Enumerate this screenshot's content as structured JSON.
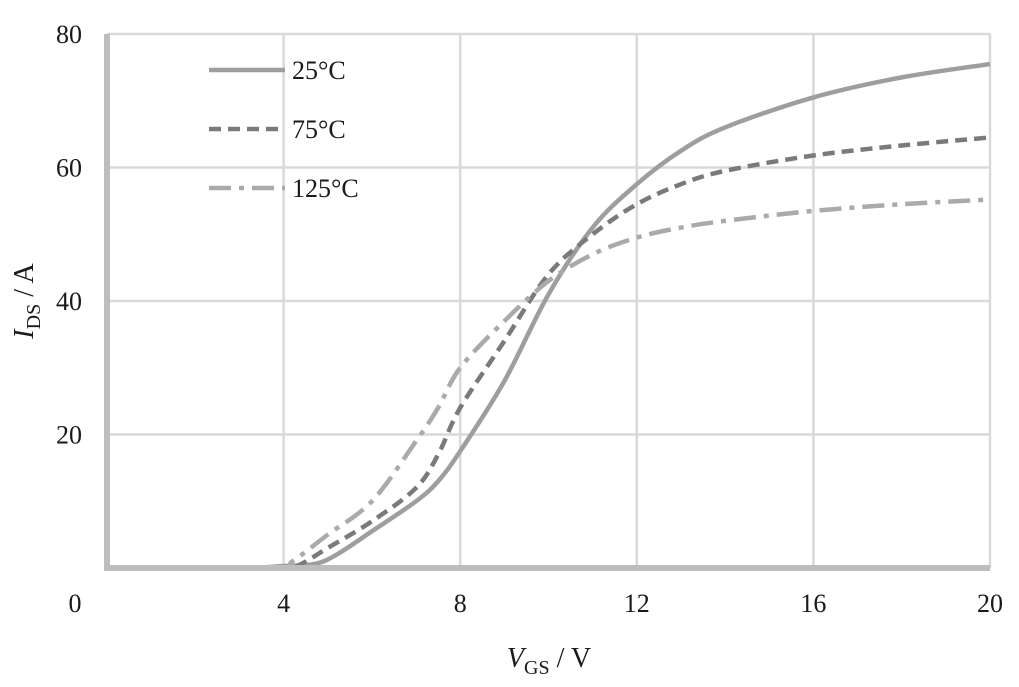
{
  "chart_data": {
    "type": "line",
    "xlabel": {
      "italic": "V",
      "sub": "GS",
      "unit": " / V"
    },
    "ylabel": {
      "italic": "I",
      "sub": "DS",
      "unit": " / A"
    },
    "xlim": [
      0,
      20
    ],
    "ylim": [
      0,
      80
    ],
    "x_ticks": [
      "0",
      "4",
      "8",
      "12",
      "16",
      "20"
    ],
    "y_ticks": [
      "20",
      "40",
      "60",
      "80"
    ],
    "grid": true,
    "legend_position": "top-left",
    "series": [
      {
        "name": "25°C",
        "color": "#9e9e9e",
        "dash": "solid",
        "points": [
          [
            0,
            0
          ],
          [
            3,
            0
          ],
          [
            4,
            0.3
          ],
          [
            4.7,
            0.6
          ],
          [
            5.2,
            2
          ],
          [
            6,
            5.5
          ],
          [
            7,
            10
          ],
          [
            7.5,
            13
          ],
          [
            8,
            17.5
          ],
          [
            9,
            28
          ],
          [
            10,
            41
          ],
          [
            11,
            51
          ],
          [
            12,
            57.5
          ],
          [
            13,
            62.5
          ],
          [
            14,
            66
          ],
          [
            16,
            70.5
          ],
          [
            18,
            73.5
          ],
          [
            20,
            75.5
          ]
        ]
      },
      {
        "name": "75°C",
        "color": "#7a7a7a",
        "dash": "dash",
        "points": [
          [
            0,
            0
          ],
          [
            3.8,
            0
          ],
          [
            4.3,
            0.3
          ],
          [
            5,
            3
          ],
          [
            6,
            7
          ],
          [
            7,
            12
          ],
          [
            7.5,
            17
          ],
          [
            8,
            24
          ],
          [
            9,
            34
          ],
          [
            10,
            44
          ],
          [
            11,
            50
          ],
          [
            12,
            54.5
          ],
          [
            13,
            57.5
          ],
          [
            14,
            59.5
          ],
          [
            16,
            61.8
          ],
          [
            18,
            63.3
          ],
          [
            20,
            64.5
          ]
        ]
      },
      {
        "name": "125°C",
        "color": "#aaaaaa",
        "dash": "dashdot",
        "points": [
          [
            0,
            0
          ],
          [
            3.8,
            0
          ],
          [
            4.2,
            1
          ],
          [
            5,
            5
          ],
          [
            6,
            10
          ],
          [
            7,
            19
          ],
          [
            7.5,
            24
          ],
          [
            8,
            30
          ],
          [
            9,
            37
          ],
          [
            10,
            43
          ],
          [
            11,
            47
          ],
          [
            12,
            49.5
          ],
          [
            13,
            51
          ],
          [
            14,
            52
          ],
          [
            16,
            53.5
          ],
          [
            18,
            54.5
          ],
          [
            20,
            55.2
          ]
        ]
      }
    ]
  }
}
